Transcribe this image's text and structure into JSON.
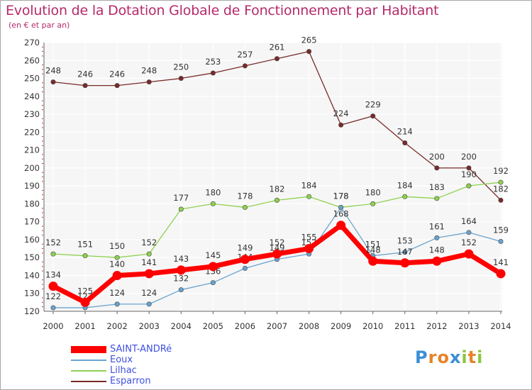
{
  "header": {
    "title": "Evolution de la Dotation Globale de Fonctionnement par Habitant",
    "subtitle": "(en € et par an)"
  },
  "logo": {
    "letters": [
      "P",
      "r",
      "o",
      "x",
      "i",
      "t",
      "i"
    ],
    "colors": [
      "#3a8fd6",
      "#e8832a",
      "#e8832a",
      "#3a8fd6",
      "#8cc63f",
      "#e8832a",
      "#8cc63f"
    ]
  },
  "chart_data": {
    "type": "line",
    "x": [
      "2000",
      "2001",
      "2002",
      "2003",
      "2004",
      "2005",
      "2006",
      "2007",
      "2008",
      "2009",
      "2010",
      "2011",
      "2012",
      "2013",
      "2014"
    ],
    "ylim": [
      120,
      270
    ],
    "yticks": [
      "120",
      "130",
      "140",
      "150",
      "160",
      "170",
      "180",
      "190",
      "200",
      "210",
      "220",
      "230",
      "240",
      "250",
      "260",
      "270"
    ],
    "grid": true,
    "legend_placement": "bottom-left",
    "series": [
      {
        "name": "SAINT-ANDRé",
        "color": "#ff0000",
        "values": [
          134,
          125,
          140,
          141,
          143,
          145,
          149,
          152,
          155,
          168,
          148,
          147,
          148,
          152,
          141
        ]
      },
      {
        "name": "Eoux",
        "color": "#6aa3cf",
        "values": [
          122,
          122,
          124,
          124,
          132,
          136,
          144,
          149,
          152,
          178,
          151,
          153,
          161,
          164,
          159
        ]
      },
      {
        "name": "Lilhac",
        "color": "#8fd14f",
        "values": [
          152,
          151,
          150,
          152,
          177,
          180,
          178,
          182,
          184,
          178,
          180,
          184,
          183,
          190,
          192
        ]
      },
      {
        "name": "Esparron",
        "color": "#7a2a2a",
        "values": [
          248,
          246,
          246,
          248,
          250,
          253,
          257,
          261,
          265,
          224,
          229,
          214,
          200,
          200,
          182
        ]
      }
    ]
  }
}
